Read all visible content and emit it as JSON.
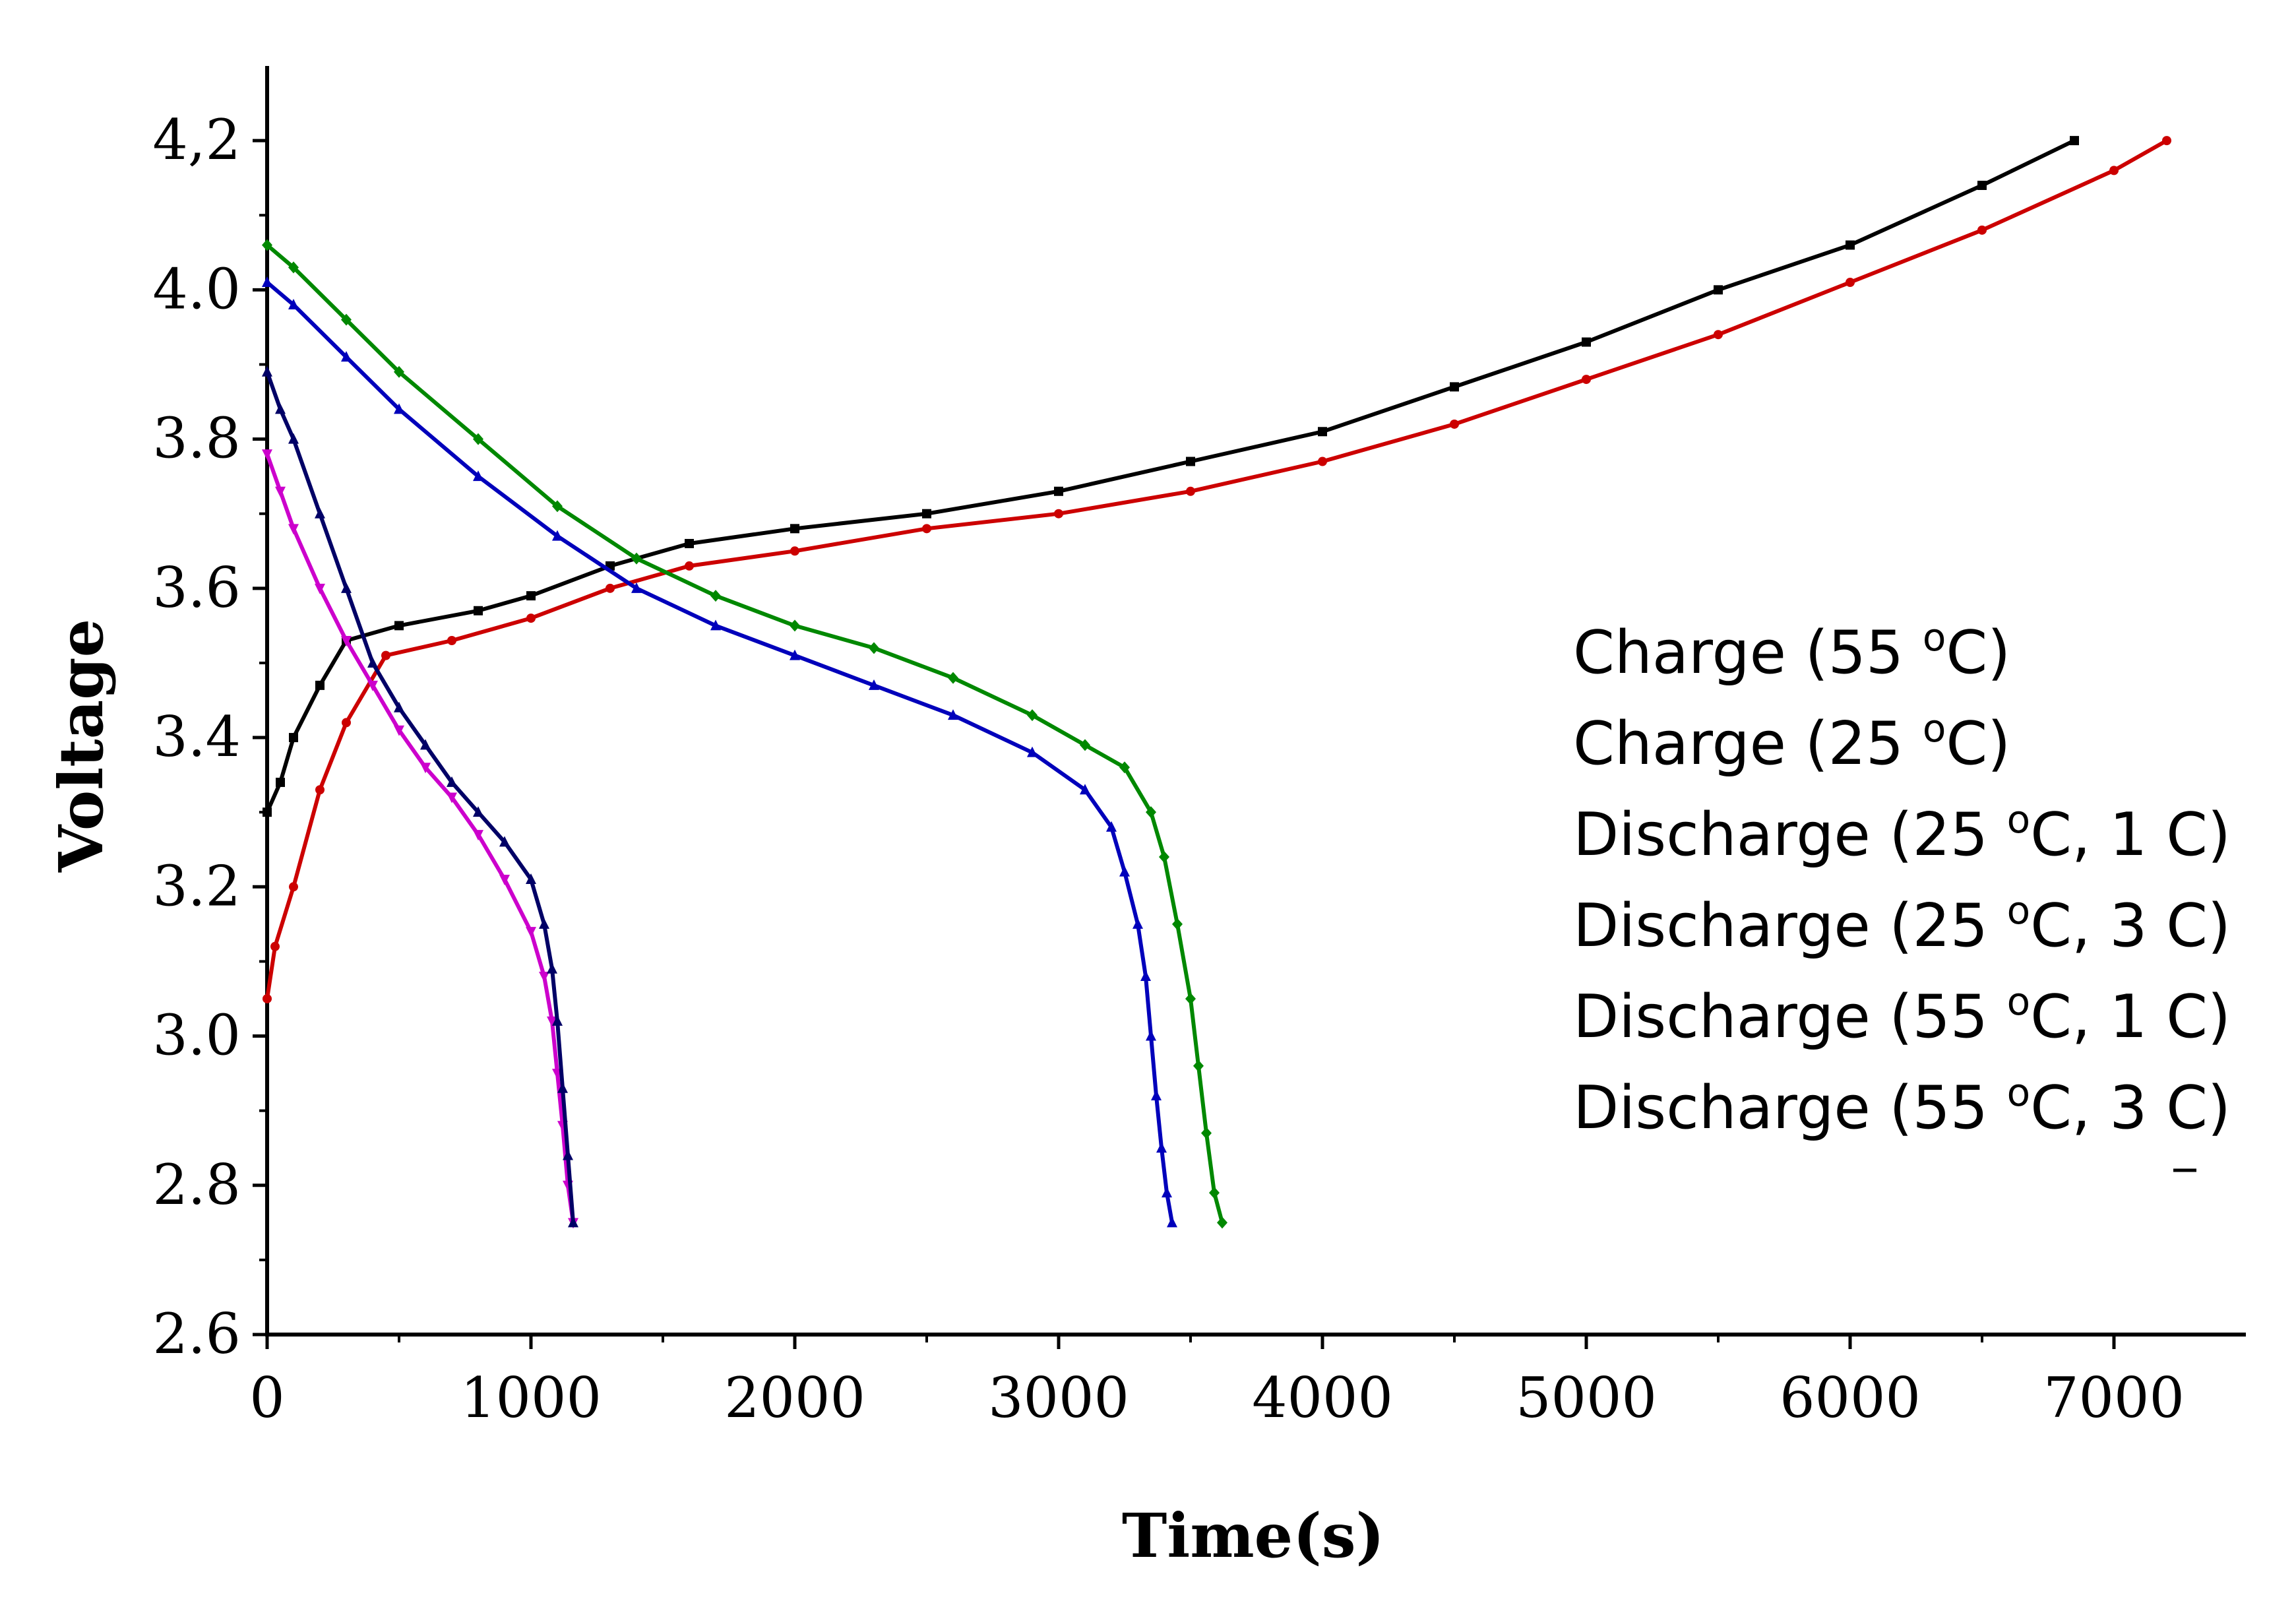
{
  "chart_data": {
    "type": "line",
    "title": "",
    "xlabel": "Time(s)",
    "ylabel": "Voltage",
    "xlim": [
      0,
      7500
    ],
    "ylim": [
      2.6,
      4.3
    ],
    "xticks": [
      0,
      1000,
      2000,
      3000,
      4000,
      5000,
      6000,
      7000
    ],
    "xtick_labels": [
      "0",
      "1000",
      "2000",
      "3000",
      "4000",
      "5000",
      "6000",
      "7000"
    ],
    "yticks": [
      2.6,
      2.8,
      3.0,
      3.2,
      3.4,
      3.6,
      3.8,
      4.0,
      4.2
    ],
    "ytick_labels": [
      "2.6",
      "2.8",
      "3.0",
      "3.2",
      "3.4",
      "3.6",
      "3.8",
      "4.0",
      "4,2"
    ],
    "grid": false,
    "legend_position": "right",
    "series": [
      {
        "name": "Charge (55 oC)",
        "legend_main": "Charge (55 ",
        "legend_sup": "o",
        "legend_tail": "C)",
        "color": "#000000",
        "marker": "square",
        "x": [
          0,
          50,
          100,
          200,
          300,
          500,
          800,
          1000,
          1300,
          1600,
          2000,
          2500,
          3000,
          3500,
          4000,
          4500,
          5000,
          5500,
          6000,
          6500,
          6850
        ],
        "y": [
          3.3,
          3.34,
          3.4,
          3.47,
          3.53,
          3.55,
          3.57,
          3.59,
          3.63,
          3.66,
          3.68,
          3.7,
          3.73,
          3.77,
          3.81,
          3.87,
          3.93,
          4.0,
          4.06,
          4.14,
          4.2
        ]
      },
      {
        "name": "Charge (25 oC)",
        "legend_main": "Charge (25 ",
        "legend_sup": "o",
        "legend_tail": "C)",
        "color": "#cc0000",
        "marker": "circle",
        "x": [
          0,
          30,
          100,
          200,
          300,
          450,
          700,
          1000,
          1300,
          1600,
          2000,
          2500,
          3000,
          3500,
          4000,
          4500,
          5000,
          5500,
          6000,
          6500,
          7000,
          7200
        ],
        "y": [
          3.05,
          3.12,
          3.2,
          3.33,
          3.42,
          3.51,
          3.53,
          3.56,
          3.6,
          3.63,
          3.65,
          3.68,
          3.7,
          3.73,
          3.77,
          3.82,
          3.88,
          3.94,
          4.01,
          4.08,
          4.16,
          4.2
        ]
      },
      {
        "name": "Discharge (25 oC, 1 C)",
        "legend_main": "Discharge (25 ",
        "legend_sup": "o",
        "legend_tail": "C, 1 C)",
        "color": "#0000bb",
        "marker": "triangle",
        "x": [
          0,
          100,
          300,
          500,
          800,
          1100,
          1400,
          1700,
          2000,
          2300,
          2600,
          2900,
          3100,
          3200,
          3250,
          3300,
          3330,
          3350,
          3370,
          3390,
          3410,
          3430
        ],
        "y": [
          4.01,
          3.98,
          3.91,
          3.84,
          3.75,
          3.67,
          3.6,
          3.55,
          3.51,
          3.47,
          3.43,
          3.38,
          3.33,
          3.28,
          3.22,
          3.15,
          3.08,
          3.0,
          2.92,
          2.85,
          2.79,
          2.75
        ]
      },
      {
        "name": "Discharge (25 oC, 3 C)",
        "legend_main": "Discharge (25 ",
        "legend_sup": "o",
        "legend_tail": "C, 3 C)",
        "color": "#cc00cc",
        "marker": "triangle-down",
        "x": [
          0,
          50,
          100,
          200,
          300,
          400,
          500,
          600,
          700,
          800,
          900,
          1000,
          1050,
          1080,
          1100,
          1120,
          1140,
          1160
        ],
        "y": [
          3.78,
          3.73,
          3.68,
          3.6,
          3.53,
          3.47,
          3.41,
          3.36,
          3.32,
          3.27,
          3.21,
          3.14,
          3.08,
          3.02,
          2.95,
          2.88,
          2.8,
          2.75
        ]
      },
      {
        "name": "Discharge (55 oC, 1 C)",
        "legend_main": "Discharge (55 ",
        "legend_sup": "o",
        "legend_tail": "C, 1 C)",
        "color": "#008800",
        "marker": "diamond",
        "x": [
          0,
          100,
          300,
          500,
          800,
          1100,
          1400,
          1700,
          2000,
          2300,
          2600,
          2900,
          3100,
          3250,
          3350,
          3400,
          3450,
          3500,
          3530,
          3560,
          3590,
          3620
        ],
        "y": [
          4.06,
          4.03,
          3.96,
          3.89,
          3.8,
          3.71,
          3.64,
          3.59,
          3.55,
          3.52,
          3.48,
          3.43,
          3.39,
          3.36,
          3.3,
          3.24,
          3.15,
          3.05,
          2.96,
          2.87,
          2.79,
          2.75
        ]
      },
      {
        "name": "Discharge (55 oC, 3 C)",
        "legend_main": "Discharge (55 ",
        "legend_sup": "o",
        "legend_tail": "C, 3 C)",
        "color": "#000066",
        "marker": "triangle",
        "x": [
          0,
          50,
          100,
          200,
          300,
          400,
          500,
          600,
          700,
          800,
          900,
          1000,
          1050,
          1080,
          1100,
          1120,
          1140,
          1160
        ],
        "y": [
          3.89,
          3.84,
          3.8,
          3.7,
          3.6,
          3.5,
          3.44,
          3.39,
          3.34,
          3.3,
          3.26,
          3.21,
          3.15,
          3.09,
          3.02,
          2.93,
          2.84,
          2.75
        ]
      }
    ]
  }
}
